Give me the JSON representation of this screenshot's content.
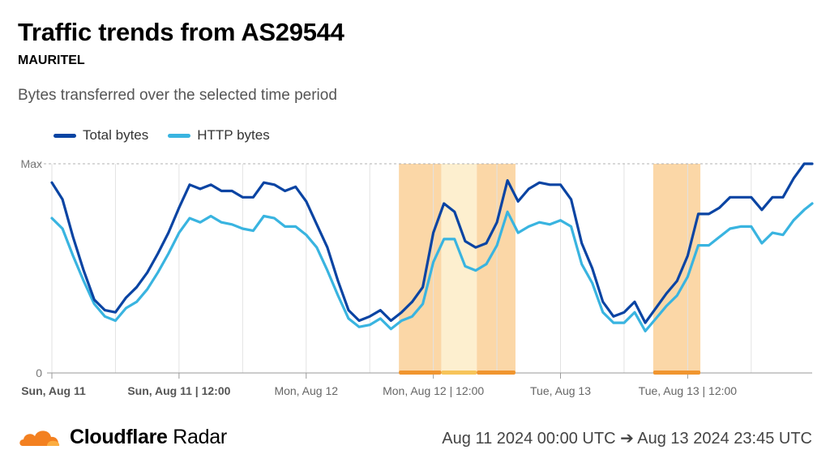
{
  "header": {
    "title": "Traffic trends from AS29544",
    "subtitle": "MAURITEL",
    "description": "Bytes transferred over the selected time period"
  },
  "footer": {
    "brand_bold": "Cloudflare",
    "brand_regular": "Radar",
    "period": "Aug 11 2024 00:00 UTC ➔ Aug 13 2024 23:45 UTC"
  },
  "colors": {
    "total": "#0a44a3",
    "http": "#39b4e0",
    "outage_band": "#fbd7a7",
    "outage_light": "#fdefcf",
    "outage_bar": "#f0952f",
    "outage_bar_light": "#f7c45a"
  },
  "chart_data": {
    "type": "line",
    "title": "Traffic trends from AS29544",
    "subtitle": "MAURITEL",
    "ylim": [
      0,
      1
    ],
    "y_tick_labels": [
      "0",
      "Max"
    ],
    "x_tick_labels": [
      "Sun, Aug 11",
      "Sun, Aug 11 | 12:00",
      "Mon, Aug 12",
      "Mon, Aug 12 | 12:00",
      "Tue, Aug 13",
      "Tue, Aug 13 | 12:00"
    ],
    "x_tick_hours": [
      0,
      12,
      24,
      36,
      48,
      60
    ],
    "x_range_hours": [
      0,
      71.75
    ],
    "grid_hours": [
      0,
      6,
      12,
      18,
      24,
      30,
      36,
      42,
      48,
      54,
      60,
      66
    ],
    "legend_position": "top-left",
    "x": [
      0,
      1,
      2,
      3,
      4,
      5,
      6,
      7,
      8,
      9,
      10,
      11,
      12,
      13,
      14,
      15,
      16,
      17,
      18,
      19,
      20,
      21,
      22,
      23,
      24,
      25,
      26,
      27,
      28,
      29,
      30,
      31,
      32,
      33,
      34,
      35,
      36,
      37,
      38,
      39,
      40,
      41,
      42,
      43,
      44,
      45,
      46,
      47,
      48,
      49,
      50,
      51,
      52,
      53,
      54,
      55,
      56,
      57,
      58,
      59,
      60,
      61,
      62,
      63,
      64,
      65,
      66,
      67,
      68,
      69,
      70,
      71,
      71.75
    ],
    "series": [
      {
        "name": "Total bytes",
        "values": [
          0.91,
          0.83,
          0.65,
          0.49,
          0.35,
          0.3,
          0.29,
          0.36,
          0.41,
          0.48,
          0.57,
          0.67,
          0.79,
          0.9,
          0.88,
          0.9,
          0.87,
          0.87,
          0.84,
          0.84,
          0.91,
          0.9,
          0.87,
          0.89,
          0.82,
          0.71,
          0.6,
          0.44,
          0.3,
          0.25,
          0.27,
          0.3,
          0.25,
          0.29,
          0.34,
          0.41,
          0.67,
          0.81,
          0.77,
          0.63,
          0.6,
          0.62,
          0.72,
          0.92,
          0.82,
          0.88,
          0.91,
          0.9,
          0.9,
          0.83,
          0.62,
          0.5,
          0.34,
          0.27,
          0.29,
          0.34,
          0.24,
          0.31,
          0.38,
          0.44,
          0.56,
          0.76,
          0.76,
          0.79,
          0.84,
          0.84,
          0.84,
          0.78,
          0.84,
          0.84,
          0.93,
          1.0,
          1.0
        ]
      },
      {
        "name": "HTTP bytes",
        "values": [
          0.74,
          0.69,
          0.56,
          0.44,
          0.33,
          0.27,
          0.25,
          0.31,
          0.34,
          0.4,
          0.48,
          0.57,
          0.67,
          0.74,
          0.72,
          0.75,
          0.72,
          0.71,
          0.69,
          0.68,
          0.75,
          0.74,
          0.7,
          0.7,
          0.66,
          0.6,
          0.49,
          0.37,
          0.26,
          0.22,
          0.23,
          0.26,
          0.21,
          0.25,
          0.27,
          0.33,
          0.53,
          0.64,
          0.64,
          0.51,
          0.49,
          0.52,
          0.61,
          0.77,
          0.67,
          0.7,
          0.72,
          0.71,
          0.73,
          0.7,
          0.52,
          0.43,
          0.29,
          0.24,
          0.24,
          0.29,
          0.2,
          0.26,
          0.32,
          0.37,
          0.46,
          0.61,
          0.61,
          0.65,
          0.69,
          0.7,
          0.7,
          0.62,
          0.67,
          0.66,
          0.73,
          0.78,
          0.81
        ]
      }
    ],
    "outage_periods_hours": [
      {
        "start": 32.75,
        "end": 36.75,
        "shade": "strong"
      },
      {
        "start": 36.75,
        "end": 40.1,
        "shade": "light"
      },
      {
        "start": 40.1,
        "end": 43.75,
        "shade": "strong"
      },
      {
        "start": 56.75,
        "end": 61.2,
        "shade": "strong"
      }
    ]
  }
}
